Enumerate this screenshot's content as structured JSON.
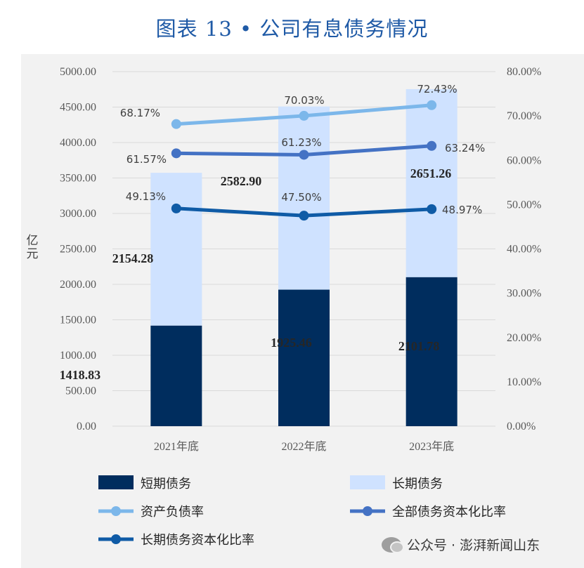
{
  "title": "图表 13 • 公司有息债务情况",
  "watermark": "公众号 · 澎湃新闻山东",
  "chart_data": {
    "type": "bar",
    "stacked": true,
    "categories": [
      "2021年底",
      "2022年底",
      "2023年底"
    ],
    "series": [
      {
        "name": "短期债务",
        "kind": "bar",
        "color": "#002d5e",
        "values": [
          1418.83,
          1925.46,
          2101.78
        ],
        "labels": [
          "1418.83",
          "1925.46",
          "2101.78"
        ]
      },
      {
        "name": "长期债务",
        "kind": "bar",
        "color": "#cfe2ff",
        "values": [
          2154.28,
          2582.9,
          2651.26
        ],
        "labels": [
          "2154.28",
          "2582.90",
          "2651.26"
        ]
      },
      {
        "name": "资产负债率",
        "kind": "line",
        "axis": "right",
        "color": "#7cb7ea",
        "values": [
          68.17,
          70.03,
          72.43
        ],
        "labels": [
          "68.17%",
          "70.03%",
          "72.43%"
        ]
      },
      {
        "name": "全部债务资本化比率",
        "kind": "line",
        "axis": "right",
        "color": "#4472c4",
        "values": [
          61.57,
          61.23,
          63.24
        ],
        "labels": [
          "61.57%",
          "61.23%",
          "63.24%"
        ]
      },
      {
        "name": "长期债务资本化比率",
        "kind": "line",
        "axis": "right",
        "color": "#0f5ba6",
        "values": [
          49.13,
          47.5,
          48.97
        ],
        "labels": [
          "49.13%",
          "47.50%",
          "48.97%"
        ]
      }
    ],
    "ylabel": "亿元",
    "ylim": [
      0,
      5000
    ],
    "y2lim": [
      0,
      80
    ],
    "yticks": [
      "0.00",
      "500.00",
      "1000.00",
      "1500.00",
      "2000.00",
      "2500.00",
      "3000.00",
      "3500.00",
      "4000.00",
      "4500.00",
      "5000.00"
    ],
    "y2ticks": [
      "0.00%",
      "10.00%",
      "20.00%",
      "30.00%",
      "40.00%",
      "50.00%",
      "60.00%",
      "70.00%",
      "80.00%"
    ],
    "grid": true,
    "legend": "bottom",
    "legend_items": [
      {
        "name": "短期债务",
        "type": "box",
        "color": "#002d5e"
      },
      {
        "name": "长期债务",
        "type": "box",
        "color": "#cfe2ff"
      },
      {
        "name": "资产负债率",
        "type": "line",
        "color": "#7cb7ea"
      },
      {
        "name": "全部债务资本化比率",
        "type": "line",
        "color": "#4472c4"
      },
      {
        "name": "长期债务资本化比率",
        "type": "line",
        "color": "#0f5ba6"
      }
    ]
  }
}
